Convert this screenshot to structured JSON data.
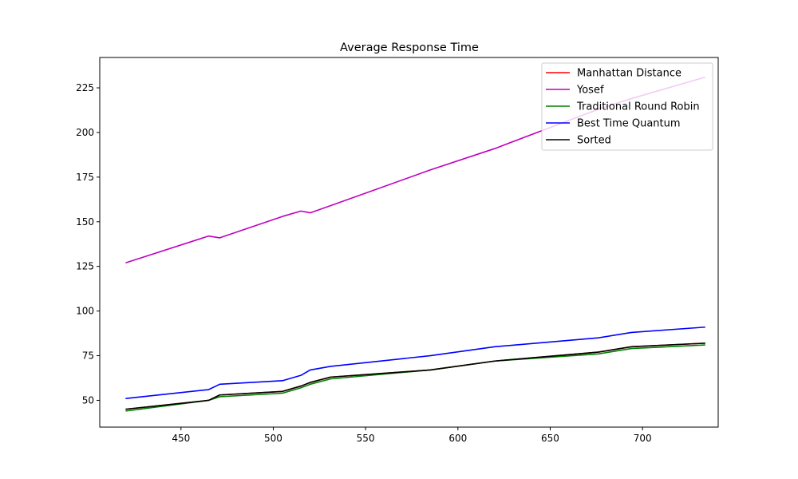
{
  "chart_data": {
    "type": "line",
    "title": "Average Response Time",
    "xlabel": "",
    "ylabel": "",
    "xlim": [
      406,
      741
    ],
    "ylim": [
      35,
      242
    ],
    "xticks": [
      450,
      500,
      550,
      600,
      650,
      700
    ],
    "yticks": [
      50,
      75,
      100,
      125,
      150,
      175,
      200,
      225
    ],
    "grid": false,
    "legend_position": "top-right",
    "x": [
      420,
      465,
      471,
      505,
      515,
      520,
      531,
      585,
      620,
      676,
      694,
      734
    ],
    "series": [
      {
        "name": "Manhattan Distance",
        "color": "#ff0000",
        "values": [
          45,
          50,
          53,
          55,
          58,
          60,
          63,
          67,
          72,
          77,
          80,
          82
        ]
      },
      {
        "name": "Yosef",
        "color": "#bf00bf",
        "values": [
          127,
          142,
          141,
          153,
          156,
          155,
          159,
          179,
          191,
          213,
          219,
          231
        ]
      },
      {
        "name": "Traditional Round Robin",
        "color": "#008000",
        "values": [
          44,
          50,
          52,
          54,
          57,
          59,
          62,
          67,
          72,
          76,
          79,
          81
        ]
      },
      {
        "name": "Best Time Quantum",
        "color": "#0000ff",
        "values": [
          51,
          56,
          59,
          61,
          64,
          67,
          69,
          75,
          80,
          85,
          88,
          91
        ]
      },
      {
        "name": "Sorted",
        "color": "#000000",
        "values": [
          45,
          50,
          53,
          55,
          58,
          60,
          63,
          67,
          72,
          77,
          80,
          82
        ]
      }
    ]
  }
}
